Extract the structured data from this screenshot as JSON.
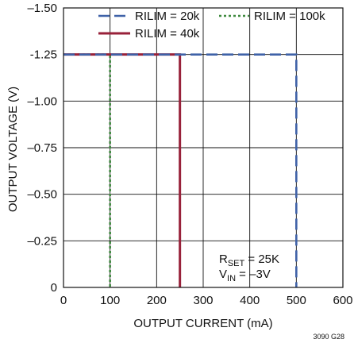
{
  "chart_data": {
    "type": "line",
    "xlabel": "OUTPUT CURRENT (mA)",
    "ylabel": "OUTPUT VOLTAGE (V)",
    "xlim": [
      0,
      600
    ],
    "ylim": [
      0,
      -1.5
    ],
    "x_ticks": [
      0,
      100,
      200,
      300,
      400,
      500,
      600
    ],
    "y_ticks": [
      0,
      -0.25,
      -0.5,
      -0.75,
      -1.0,
      -1.25,
      -1.5
    ],
    "y_tick_labels": [
      "0",
      "–0.25",
      "–0.50",
      "–0.75",
      "–1.00",
      "-1.25",
      "–1.50"
    ],
    "grid": true,
    "legend_position": "top",
    "series": [
      {
        "name": "RILIM = 20k",
        "color": "#3f62a8",
        "dash": "dashed",
        "x": [
          0,
          500,
          500
        ],
        "y": [
          -1.25,
          -1.25,
          0
        ]
      },
      {
        "name": "RILIM = 100k",
        "color": "#3f8a3f",
        "dash": "dotted",
        "x": [
          0,
          100,
          100
        ],
        "y": [
          -1.25,
          -1.25,
          0
        ]
      },
      {
        "name": "RILIM = 40k",
        "color": "#98213a",
        "dash": "solid",
        "x": [
          0,
          250,
          250
        ],
        "y": [
          -1.25,
          -1.25,
          0
        ]
      }
    ],
    "annotation": {
      "line1_main": "R",
      "line1_sub": "SET",
      "line1_rest": " = 25K",
      "line2_main": "V",
      "line2_sub": "IN",
      "line2_rest": " = –3V"
    },
    "figure_id": "3090 G28"
  }
}
